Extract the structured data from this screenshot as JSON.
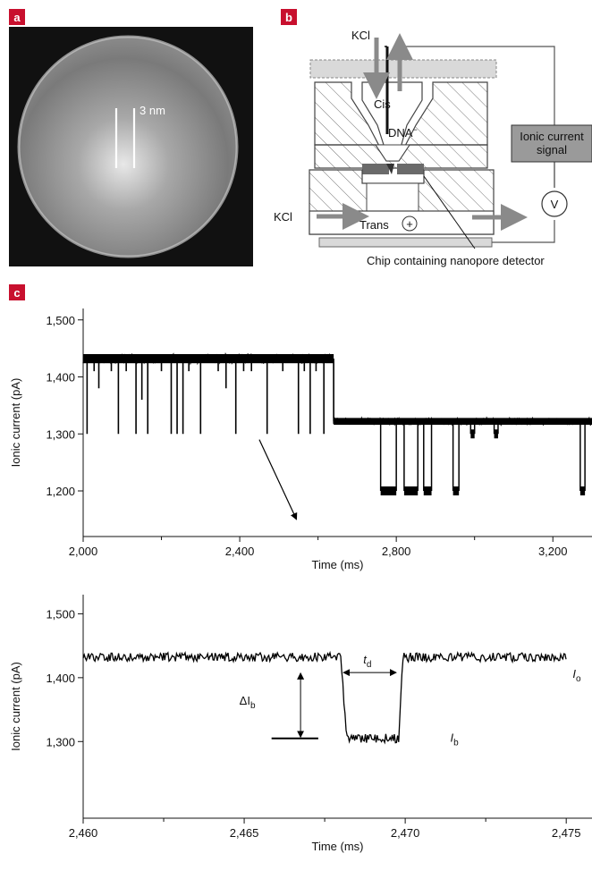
{
  "panels": {
    "a": {
      "label": "a",
      "scale_label": "3 nm"
    },
    "b": {
      "label": "b",
      "kcl_top": "KCl",
      "cis": "Cis",
      "dna": "DNA",
      "dna_sup": "−",
      "signal_line1": "Ionic current",
      "signal_line2": "signal",
      "voltmeter": "V",
      "kcl_bottom": "KCl",
      "trans": "Trans",
      "plus": "+",
      "chip_caption": "Chip containing nanopore detector"
    },
    "c": {
      "label": "c"
    }
  },
  "colors": {
    "label_bg": "#c8102e",
    "arrow_gray": "#8a8a8a",
    "signal_box": "#9a9a9a",
    "trace": "#000000",
    "membrane": "#6a6a6a"
  },
  "chart_data": [
    {
      "type": "line",
      "xlabel": "Time (ms)",
      "ylabel": "Ionic current (pA)",
      "xlim": [
        2000,
        3300
      ],
      "ylim": [
        1120,
        1520
      ],
      "xticks": [
        2000,
        2400,
        2800,
        3200
      ],
      "xtick_labels": [
        "2,000",
        "2,400",
        "2,800",
        "3,200"
      ],
      "yticks": [
        1200,
        1300,
        1400,
        1500
      ],
      "ytick_labels": [
        "1,200",
        "1,300",
        "1,400",
        "1,500"
      ],
      "segments": [
        {
          "x_start": 2000,
          "x_end": 2640,
          "baseline": 1432,
          "noise": 8
        },
        {
          "x_start": 2640,
          "x_end": 3300,
          "baseline": 1322,
          "noise": 6
        }
      ],
      "blockades": [
        {
          "x": 2010,
          "level": 1300
        },
        {
          "x": 2028,
          "level": 1410
        },
        {
          "x": 2040,
          "level": 1380
        },
        {
          "x": 2072,
          "level": 1410
        },
        {
          "x": 2090,
          "level": 1300
        },
        {
          "x": 2110,
          "level": 1410
        },
        {
          "x": 2135,
          "level": 1300
        },
        {
          "x": 2150,
          "level": 1360
        },
        {
          "x": 2165,
          "level": 1300
        },
        {
          "x": 2200,
          "level": 1410
        },
        {
          "x": 2225,
          "level": 1300
        },
        {
          "x": 2240,
          "level": 1300
        },
        {
          "x": 2255,
          "level": 1300
        },
        {
          "x": 2270,
          "level": 1410
        },
        {
          "x": 2300,
          "level": 1300
        },
        {
          "x": 2345,
          "level": 1410
        },
        {
          "x": 2365,
          "level": 1380
        },
        {
          "x": 2390,
          "level": 1300
        },
        {
          "x": 2410,
          "level": 1410
        },
        {
          "x": 2430,
          "level": 1410
        },
        {
          "x": 2470,
          "level": 1300
        },
        {
          "x": 2510,
          "level": 1410
        },
        {
          "x": 2550,
          "level": 1300
        },
        {
          "x": 2565,
          "level": 1410
        },
        {
          "x": 2580,
          "level": 1300
        },
        {
          "x": 2595,
          "level": 1410
        },
        {
          "x": 2615,
          "level": 1300
        }
      ],
      "long_blockades": [
        {
          "x_start": 2760,
          "x_end": 2800,
          "level": 1200
        },
        {
          "x_start": 2820,
          "x_end": 2855,
          "level": 1200
        },
        {
          "x_start": 2870,
          "x_end": 2890,
          "level": 1200
        },
        {
          "x_start": 2945,
          "x_end": 2960,
          "level": 1200
        },
        {
          "x_start": 2990,
          "x_end": 3000,
          "level": 1300
        },
        {
          "x_start": 3050,
          "x_end": 3060,
          "level": 1300
        },
        {
          "x_start": 3270,
          "x_end": 3282,
          "level": 1200
        }
      ],
      "arrow": {
        "from": [
          2450,
          1290
        ],
        "to": [
          2545,
          1150
        ]
      }
    },
    {
      "type": "line",
      "xlabel": "Time (ms)",
      "ylabel": "Ionic current (pA)",
      "xlim": [
        2460,
        2475.8
      ],
      "ylim": [
        1180,
        1530
      ],
      "xticks": [
        2460,
        2465,
        2470,
        2475
      ],
      "xtick_labels": [
        "2,460",
        "2,465",
        "2,470",
        "2,475"
      ],
      "yticks": [
        1300,
        1400,
        1500
      ],
      "ytick_labels": [
        "1,300",
        "1,400",
        "1,500"
      ],
      "open_level": 1432,
      "blocked_level": 1305,
      "event_start": 2468.0,
      "event_end": 2469.8,
      "trace_start": 2460,
      "trace_end": 2475,
      "annotations": {
        "td": "t",
        "td_sub": "d",
        "delta_ib": "ΔI",
        "delta_ib_sub": "b",
        "io": "I",
        "io_sub": "o",
        "ib": "I",
        "ib_sub": "b"
      }
    }
  ]
}
